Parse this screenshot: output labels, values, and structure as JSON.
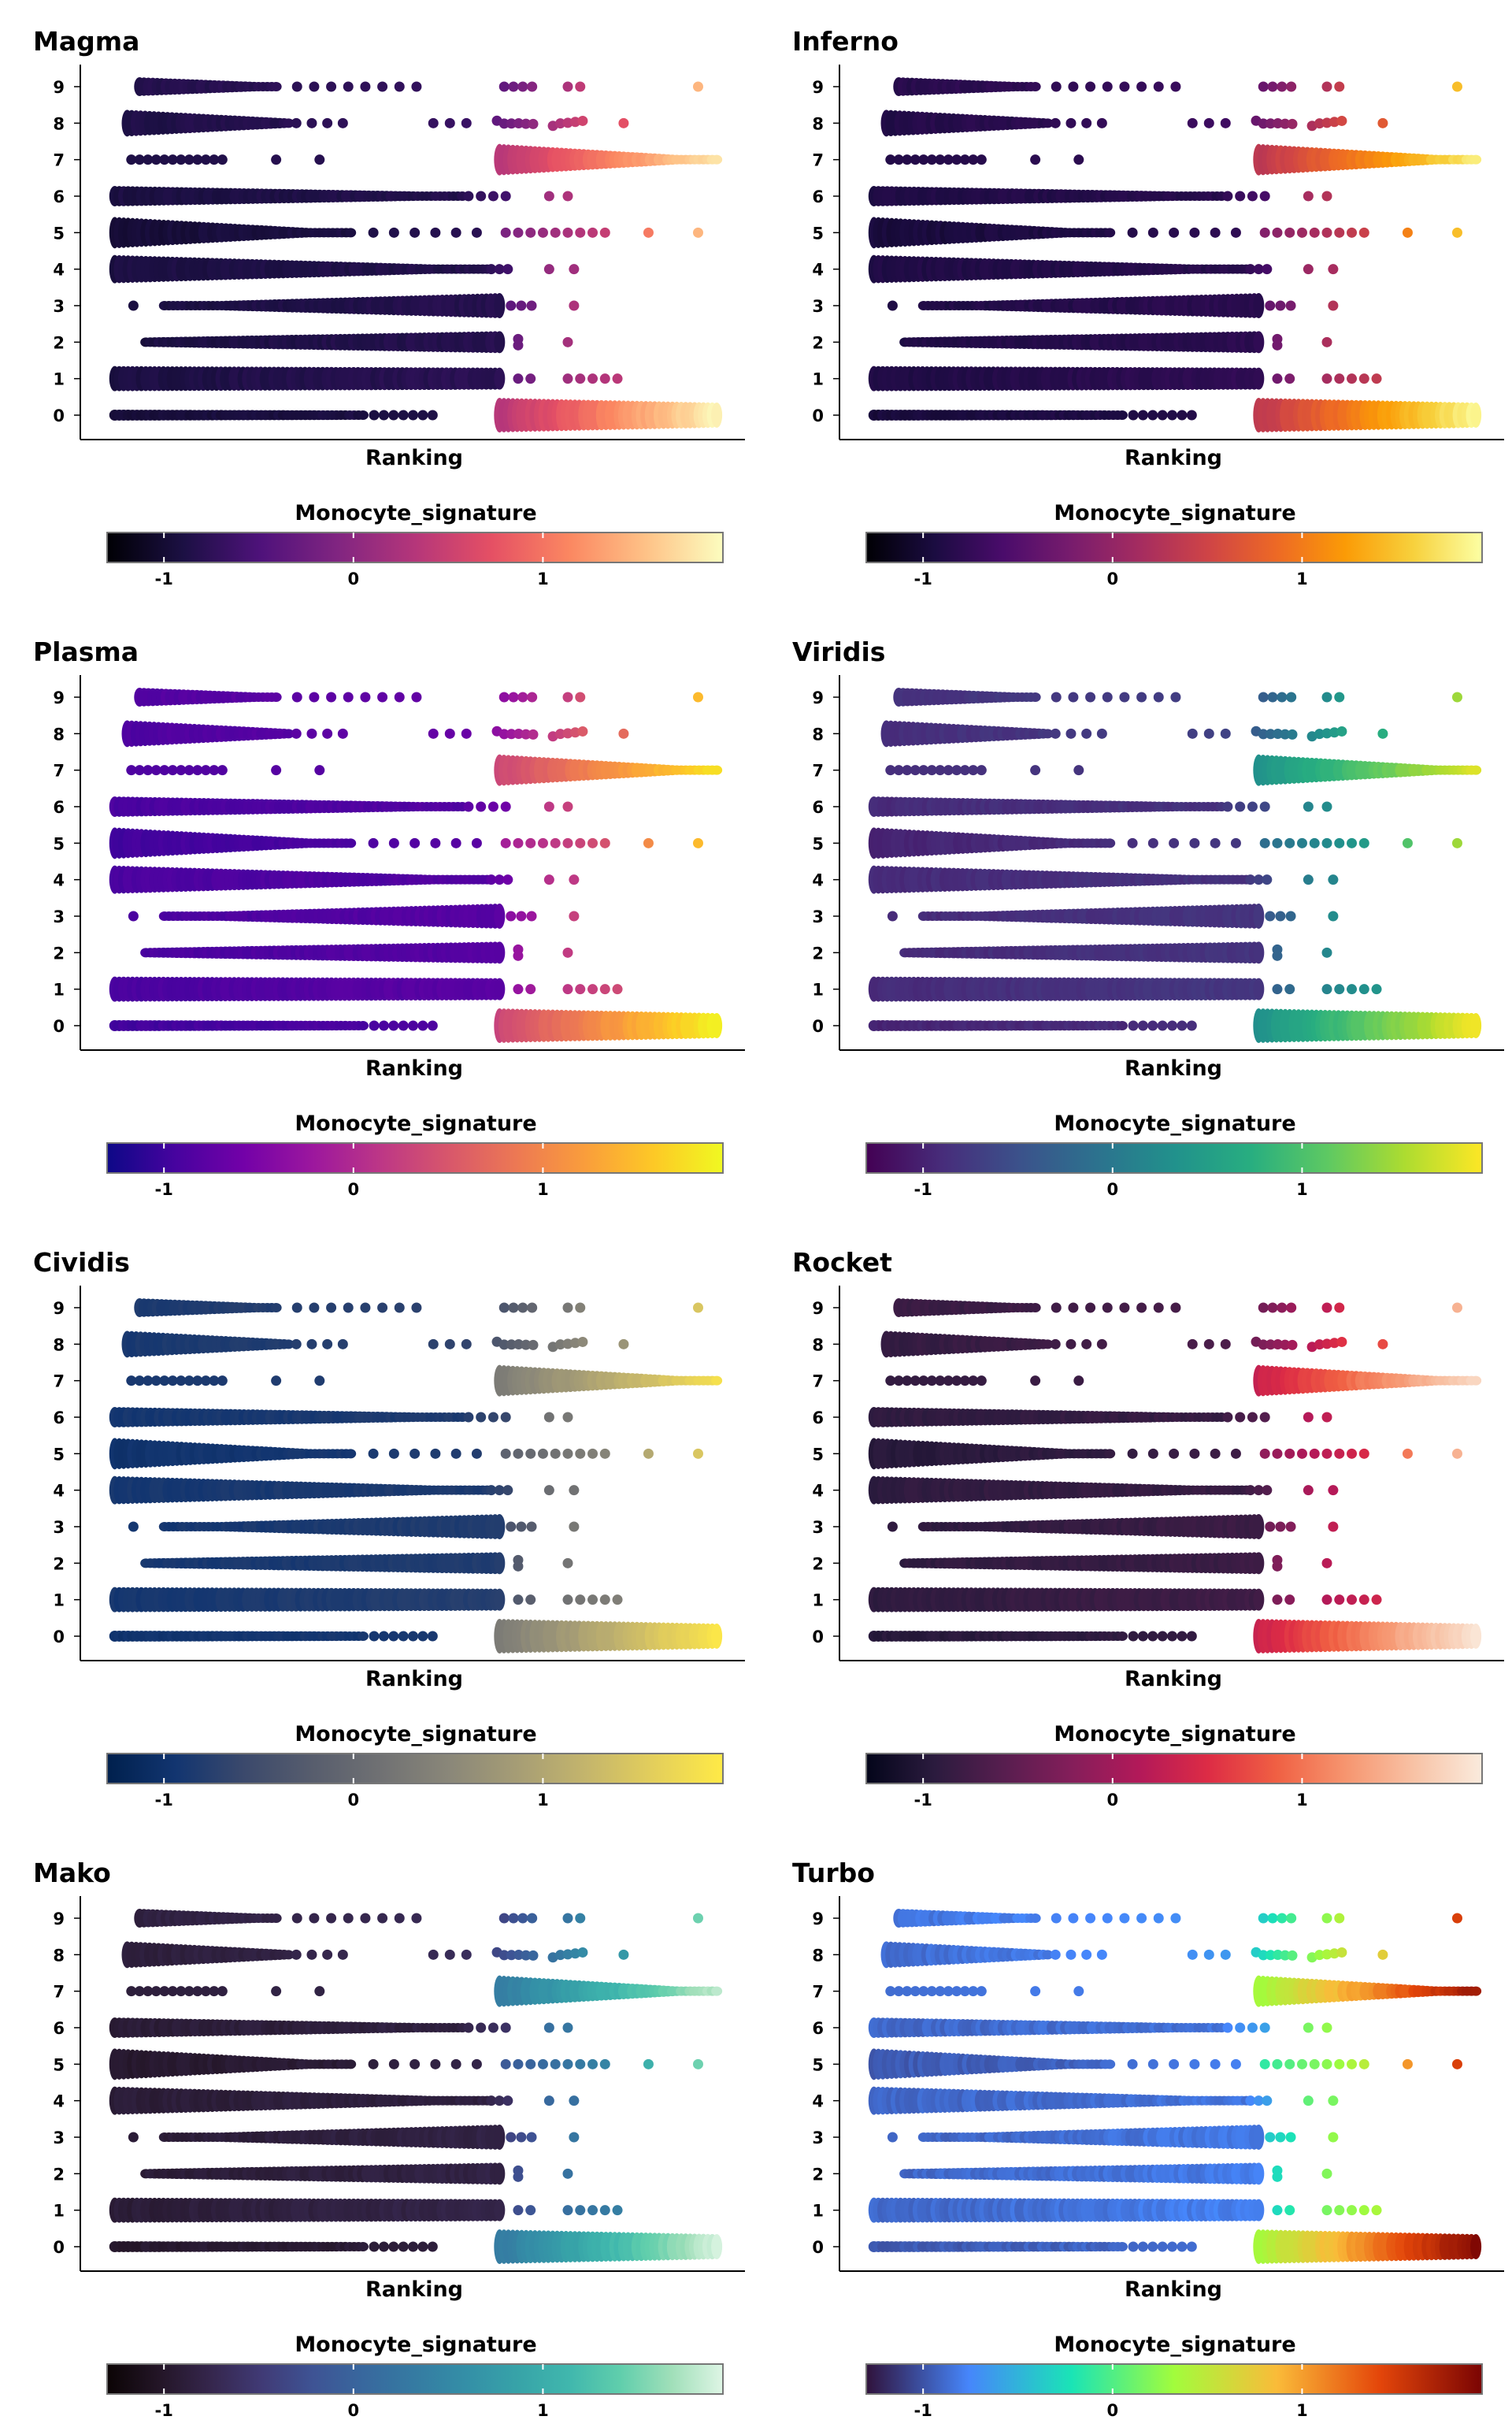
{
  "chart_data": [
    {
      "type": "scatter",
      "title": "Magma",
      "xlabel": "Ranking",
      "ylabel": "",
      "y_categories": [
        "0",
        "1",
        "2",
        "3",
        "4",
        "5",
        "6",
        "7",
        "8",
        "9"
      ],
      "legend": {
        "title": "Monocyte_signature",
        "ticks": [
          "-1",
          "0",
          "1"
        ],
        "range": [
          -1.3,
          1.95
        ],
        "colors": [
          "#000004",
          "#1c1044",
          "#4f127b",
          "#812581",
          "#b5367a",
          "#e55064",
          "#fb8761",
          "#fec287",
          "#fcfdbf"
        ]
      }
    },
    {
      "type": "scatter",
      "title": "Inferno",
      "xlabel": "Ranking",
      "ylabel": "",
      "y_categories": [
        "0",
        "1",
        "2",
        "3",
        "4",
        "5",
        "6",
        "7",
        "8",
        "9"
      ],
      "legend": {
        "title": "Monocyte_signature",
        "ticks": [
          "-1",
          "0",
          "1"
        ],
        "range": [
          -1.3,
          1.95
        ],
        "colors": [
          "#000004",
          "#1b0c41",
          "#4a0c6b",
          "#781c6d",
          "#a52c60",
          "#cf4446",
          "#ed6925",
          "#fb9b06",
          "#f7d13d",
          "#fcffa4"
        ]
      }
    },
    {
      "type": "scatter",
      "title": "Plasma",
      "xlabel": "Ranking",
      "ylabel": "",
      "y_categories": [
        "0",
        "1",
        "2",
        "3",
        "4",
        "5",
        "6",
        "7",
        "8",
        "9"
      ],
      "legend": {
        "title": "Monocyte_signature",
        "ticks": [
          "-1",
          "0",
          "1"
        ],
        "range": [
          -1.3,
          1.95
        ],
        "colors": [
          "#0d0887",
          "#47039f",
          "#7301a8",
          "#9c179e",
          "#bd3786",
          "#d8576b",
          "#ed7953",
          "#fa9e3b",
          "#fdc926",
          "#f0f921"
        ]
      }
    },
    {
      "type": "scatter",
      "title": "Viridis",
      "xlabel": "Ranking",
      "ylabel": "",
      "y_categories": [
        "0",
        "1",
        "2",
        "3",
        "4",
        "5",
        "6",
        "7",
        "8",
        "9"
      ],
      "legend": {
        "title": "Monocyte_signature",
        "ticks": [
          "-1",
          "0",
          "1"
        ],
        "range": [
          -1.3,
          1.95
        ],
        "colors": [
          "#440154",
          "#472d7b",
          "#3b528b",
          "#2c728e",
          "#21918c",
          "#28ae80",
          "#5ec962",
          "#addc30",
          "#fde725"
        ]
      }
    },
    {
      "type": "scatter",
      "title": "Cividis",
      "xlabel": "Ranking",
      "ylabel": "",
      "y_categories": [
        "0",
        "1",
        "2",
        "3",
        "4",
        "5",
        "6",
        "7",
        "8",
        "9"
      ],
      "legend": {
        "title": "Monocyte_signature",
        "ticks": [
          "-1",
          "0",
          "1"
        ],
        "range": [
          -1.3,
          1.95
        ],
        "colors": [
          "#00204d",
          "#123570",
          "#3b496c",
          "#575d6d",
          "#707173",
          "#8a8779",
          "#a69d75",
          "#c4b56c",
          "#e4cf5b",
          "#ffea46"
        ]
      }
    },
    {
      "type": "scatter",
      "title": "Rocket",
      "xlabel": "Ranking",
      "ylabel": "",
      "y_categories": [
        "0",
        "1",
        "2",
        "3",
        "4",
        "5",
        "6",
        "7",
        "8",
        "9"
      ],
      "legend": {
        "title": "Monocyte_signature",
        "ticks": [
          "-1",
          "0",
          "1"
        ],
        "range": [
          -1.3,
          1.95
        ],
        "colors": [
          "#03051a",
          "#2b1b3e",
          "#571e4f",
          "#841e5a",
          "#b31959",
          "#dd2c45",
          "#f06043",
          "#f6956f",
          "#f8c2a5",
          "#faebdd"
        ]
      }
    },
    {
      "type": "scatter",
      "title": "Mako",
      "xlabel": "Ranking",
      "ylabel": "",
      "y_categories": [
        "0",
        "1",
        "2",
        "3",
        "4",
        "5",
        "6",
        "7",
        "8",
        "9"
      ],
      "legend": {
        "title": "Monocyte_signature",
        "ticks": [
          "-1",
          "0",
          "1"
        ],
        "range": [
          -1.3,
          1.95
        ],
        "colors": [
          "#0b0405",
          "#231526",
          "#35264c",
          "#403a75",
          "#3e5394",
          "#38689e",
          "#357ba2",
          "#348fa7",
          "#37a3a8",
          "#40b7ad",
          "#60ceac",
          "#a0dfb9",
          "#def5e5"
        ]
      }
    },
    {
      "type": "scatter",
      "title": "Turbo",
      "xlabel": "Ranking",
      "ylabel": "",
      "y_categories": [
        "0",
        "1",
        "2",
        "3",
        "4",
        "5",
        "6",
        "7",
        "8",
        "9"
      ],
      "legend": {
        "title": "Monocyte_signature",
        "ticks": [
          "-1",
          "0",
          "1"
        ],
        "range": [
          -1.3,
          1.95
        ],
        "colors": [
          "#30123b",
          "#4686fb",
          "#1ae4b6",
          "#a2fc3c",
          "#fabb39",
          "#e4460a",
          "#7a0403"
        ]
      }
    }
  ]
}
